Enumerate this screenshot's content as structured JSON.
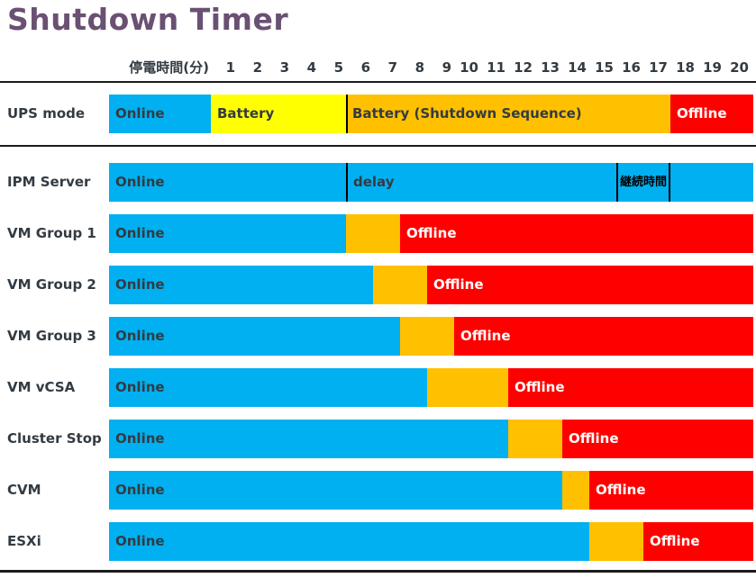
{
  "title": "Shutdown Timer",
  "colors": {
    "title_text": "#6A5072",
    "dark_text": "#333B42",
    "light_text": "#FFFFFF",
    "rule_line": "#1B1B1B",
    "divider_line": "#000000",
    "online": "#00B0F0",
    "battery": "#FFFF00",
    "shutdown_sequence": "#FFC000",
    "offline": "#FF0000"
  },
  "axis": {
    "label": "停電時間(分)",
    "ticks": [
      "1",
      "2",
      "3",
      "4",
      "5",
      "6",
      "7",
      "8",
      "9",
      "10",
      "11",
      "12",
      "13",
      "14",
      "15",
      "16",
      "17",
      "18",
      "19",
      "20"
    ]
  },
  "chart_data": {
    "type": "bar",
    "variant": "horizontal-timeline-gantt",
    "title": "Shutdown Timer",
    "xlabel": "停電時間(分)",
    "xlim": [
      0,
      20
    ],
    "x_ticks": [
      1,
      2,
      3,
      4,
      5,
      6,
      7,
      8,
      9,
      10,
      11,
      12,
      13,
      14,
      15,
      16,
      17,
      18,
      19,
      20
    ],
    "note": "start=null means bar begins in the pre-outage lead-in zone left of minute 0; end=null means bar runs to the right edge of the 20-minute axis",
    "categories": [
      "UPS mode",
      "IPM Server",
      "VM Group 1",
      "VM Group 2",
      "VM Group 3",
      "VM vCSA",
      "Cluster Stop",
      "CVM",
      "ESXi"
    ],
    "rows": [
      {
        "name": "UPS mode",
        "segments": [
          {
            "label": "Online",
            "state": "online",
            "start": null,
            "end": 0
          },
          {
            "label": "Battery",
            "state": "battery",
            "start": 0,
            "end": 5
          },
          {
            "label": "Battery (Shutdown Sequence)",
            "state": "shutdown_sequence",
            "start": 5,
            "end": 17
          },
          {
            "label": "Offline",
            "state": "offline",
            "start": 17,
            "end": null
          }
        ],
        "annotations": [
          {
            "type": "divider",
            "t": 5
          }
        ]
      },
      {
        "name": "IPM Server",
        "segments": [
          {
            "label": "Online",
            "state": "online",
            "start": null,
            "end": null
          }
        ],
        "annotations": [
          {
            "type": "divider",
            "t": 5
          },
          {
            "type": "text",
            "label": "delay",
            "t": 5
          },
          {
            "type": "window",
            "label": "継続時間",
            "start": 15,
            "end": 17
          }
        ]
      },
      {
        "name": "VM Group 1",
        "segments": [
          {
            "label": "Online",
            "state": "online",
            "start": null,
            "end": 5
          },
          {
            "label": "",
            "state": "shutdown_sequence",
            "start": 5,
            "end": 7
          },
          {
            "label": "Offline",
            "state": "offline",
            "start": 7,
            "end": null
          }
        ]
      },
      {
        "name": "VM Group 2",
        "segments": [
          {
            "label": "Online",
            "state": "online",
            "start": null,
            "end": 6
          },
          {
            "label": "",
            "state": "shutdown_sequence",
            "start": 6,
            "end": 8
          },
          {
            "label": "Offline",
            "state": "offline",
            "start": 8,
            "end": null
          }
        ]
      },
      {
        "name": "VM Group 3",
        "segments": [
          {
            "label": "Online",
            "state": "online",
            "start": null,
            "end": 7
          },
          {
            "label": "",
            "state": "shutdown_sequence",
            "start": 7,
            "end": 9
          },
          {
            "label": "Offline",
            "state": "offline",
            "start": 9,
            "end": null
          }
        ]
      },
      {
        "name": "VM vCSA",
        "segments": [
          {
            "label": "Online",
            "state": "online",
            "start": null,
            "end": 8
          },
          {
            "label": "",
            "state": "shutdown_sequence",
            "start": 8,
            "end": 11
          },
          {
            "label": "Offline",
            "state": "offline",
            "start": 11,
            "end": null
          }
        ]
      },
      {
        "name": "Cluster Stop",
        "segments": [
          {
            "label": "Online",
            "state": "online",
            "start": null,
            "end": 11
          },
          {
            "label": "",
            "state": "shutdown_sequence",
            "start": 11,
            "end": 13
          },
          {
            "label": "Offline",
            "state": "offline",
            "start": 13,
            "end": null
          }
        ]
      },
      {
        "name": "CVM",
        "segments": [
          {
            "label": "Online",
            "state": "online",
            "start": null,
            "end": 13
          },
          {
            "label": "",
            "state": "shutdown_sequence",
            "start": 13,
            "end": 14
          },
          {
            "label": "Offline",
            "state": "offline",
            "start": 14,
            "end": null
          }
        ]
      },
      {
        "name": "ESXi",
        "segments": [
          {
            "label": "Online",
            "state": "online",
            "start": null,
            "end": 14
          },
          {
            "label": "",
            "state": "shutdown_sequence",
            "start": 14,
            "end": 16
          },
          {
            "label": "Offline",
            "state": "offline",
            "start": 16,
            "end": null
          }
        ]
      }
    ]
  }
}
